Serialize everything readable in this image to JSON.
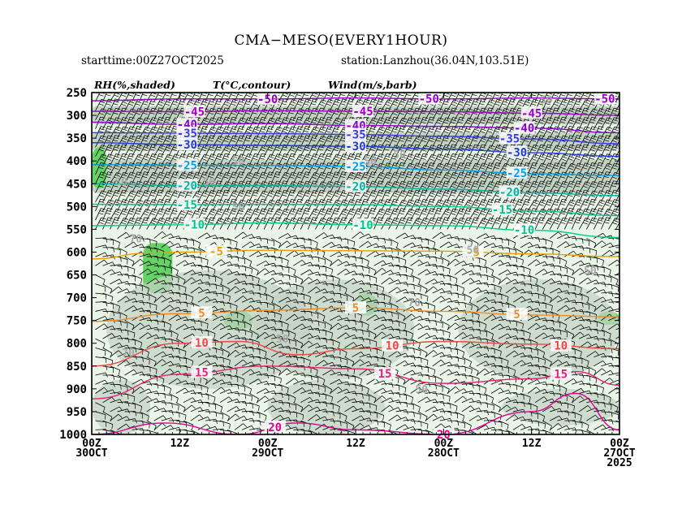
{
  "header": {
    "title": "CMA−MESO(EVERY1HOUR)",
    "starttime": "starttime:00Z27OCT2025",
    "station": "station:Lanzhou(36.04N,103.51E)"
  },
  "legend": {
    "rh": "RH(%,shaded)",
    "temp": "T(°C,contour)",
    "wind": "Wind(m/s,barb)"
  },
  "colors": {
    "shade_light": "#e9f5e6",
    "shade_mid": "#c3d3c3",
    "shade_green": "#66d266",
    "t_m50": "#9600c8",
    "t_m45": "#a000c8",
    "t_m40": "#8a00d0",
    "t_m35": "#3a3ae6",
    "t_m30": "#1e3cdc",
    "t_m25": "#00a0e6",
    "t_m20": "#00b4a0",
    "t_m15": "#00c08c",
    "t_m10": "#00c88c",
    "t_m5": "#e6a000",
    "t_p5": "#f08c28",
    "t_p10": "#f04646",
    "t_p15": "#e61e78",
    "t_p20": "#dc0096"
  },
  "chart_data": {
    "type": "time-height cross section",
    "title": "CMA−MESO(EVERY1HOUR)",
    "y_ticks": [
      250,
      300,
      350,
      400,
      450,
      500,
      550,
      600,
      650,
      700,
      750,
      800,
      850,
      900,
      950,
      1000
    ],
    "y_tick_labels": [
      "250",
      "300",
      "350",
      "400",
      "450",
      "500",
      "550",
      "600",
      "650",
      "700",
      "750",
      "800",
      "850",
      "900",
      "950",
      "1000"
    ],
    "ylim": [
      1000,
      250
    ],
    "x_ticks": [
      0,
      12,
      24,
      36,
      48,
      60,
      72
    ],
    "x_tick_labels": [
      [
        "00Z",
        "30OCT"
      ],
      [
        "12Z"
      ],
      [
        "00Z",
        "29OCT"
      ],
      [
        "12Z"
      ],
      [
        "00Z",
        "28OCT"
      ],
      [
        "12Z"
      ],
      [
        "00Z",
        "27OCT",
        "2025"
      ]
    ],
    "xlim": [
      0,
      72
    ],
    "x_direction": "time decreasing to the right (00Z30OCT to 00Z27OCT2025)",
    "temperature_contours": [
      {
        "value": -50,
        "label": "-50",
        "color_key": "t_m50",
        "points": [
          [
            0,
            268
          ],
          [
            12,
            264
          ],
          [
            24,
            264
          ],
          [
            36,
            262
          ],
          [
            48,
            264
          ],
          [
            60,
            262
          ],
          [
            72,
            264
          ]
        ],
        "labels_at": [
          24,
          46,
          70
        ]
      },
      {
        "value": -45,
        "label": "-45",
        "color_key": "t_m45",
        "points": [
          [
            0,
            291
          ],
          [
            12,
            292
          ],
          [
            24,
            290
          ],
          [
            36,
            291
          ],
          [
            48,
            292
          ],
          [
            60,
            295
          ],
          [
            72,
            300
          ]
        ],
        "labels_at": [
          14,
          37,
          60
        ]
      },
      {
        "value": -40,
        "label": "-40",
        "color_key": "t_m40",
        "points": [
          [
            0,
            315
          ],
          [
            12,
            320
          ],
          [
            24,
            318
          ],
          [
            36,
            322
          ],
          [
            48,
            324
          ],
          [
            60,
            328
          ],
          [
            72,
            338
          ]
        ],
        "labels_at": [
          13,
          36,
          59
        ]
      },
      {
        "value": -35,
        "label": "-35",
        "color_key": "t_m35",
        "points": [
          [
            0,
            338
          ],
          [
            12,
            339
          ],
          [
            24,
            340
          ],
          [
            36,
            342
          ],
          [
            48,
            346
          ],
          [
            60,
            352
          ],
          [
            72,
            362
          ]
        ],
        "labels_at": [
          13,
          36,
          57
        ]
      },
      {
        "value": -30,
        "label": "-30",
        "color_key": "t_m30",
        "points": [
          [
            0,
            360
          ],
          [
            12,
            364
          ],
          [
            24,
            366
          ],
          [
            36,
            368
          ],
          [
            48,
            374
          ],
          [
            60,
            382
          ],
          [
            72,
            390
          ]
        ],
        "labels_at": [
          13,
          36,
          58
        ]
      },
      {
        "value": -25,
        "label": "-25",
        "color_key": "t_m25",
        "points": [
          [
            0,
            408
          ],
          [
            12,
            409
          ],
          [
            24,
            410
          ],
          [
            36,
            412
          ],
          [
            48,
            420
          ],
          [
            60,
            428
          ],
          [
            72,
            432
          ]
        ],
        "labels_at": [
          13,
          36,
          58
        ]
      },
      {
        "value": -20,
        "label": "-20",
        "color_key": "t_m20",
        "points": [
          [
            0,
            450
          ],
          [
            12,
            454
          ],
          [
            24,
            454
          ],
          [
            36,
            456
          ],
          [
            48,
            462
          ],
          [
            60,
            470
          ],
          [
            72,
            476
          ]
        ],
        "labels_at": [
          13,
          36,
          57
        ]
      },
      {
        "value": -15,
        "label": "-15",
        "color_key": "t_m15",
        "points": [
          [
            0,
            495
          ],
          [
            12,
            496
          ],
          [
            24,
            495
          ],
          [
            36,
            496
          ],
          [
            48,
            500
          ],
          [
            60,
            510
          ],
          [
            72,
            520
          ]
        ],
        "labels_at": [
          13,
          56
        ]
      },
      {
        "value": -10,
        "label": "-10",
        "color_key": "t_m10",
        "points": [
          [
            0,
            542
          ],
          [
            12,
            540
          ],
          [
            24,
            536
          ],
          [
            36,
            540
          ],
          [
            48,
            542
          ],
          [
            60,
            552
          ],
          [
            72,
            568
          ]
        ],
        "labels_at": [
          14,
          37,
          59
        ]
      },
      {
        "value": -5,
        "label": "-5",
        "color_key": "t_m5",
        "points": [
          [
            0,
            615
          ],
          [
            8,
            602
          ],
          [
            12,
            600
          ],
          [
            24,
            596
          ],
          [
            36,
            597
          ],
          [
            48,
            598
          ],
          [
            60,
            604
          ],
          [
            72,
            610
          ]
        ],
        "labels_at": [
          17,
          52
        ]
      },
      {
        "value": 5,
        "label": "5",
        "color_key": "t_p5",
        "points": [
          [
            0,
            752
          ],
          [
            12,
            735
          ],
          [
            24,
            728
          ],
          [
            36,
            722
          ],
          [
            48,
            730
          ],
          [
            60,
            738
          ],
          [
            72,
            742
          ]
        ],
        "labels_at": [
          15,
          36,
          58
        ]
      },
      {
        "value": 10,
        "label": "10",
        "color_key": "t_p10",
        "points": [
          [
            0,
            850
          ],
          [
            12,
            800
          ],
          [
            20,
            796
          ],
          [
            28,
            825
          ],
          [
            36,
            812
          ],
          [
            48,
            796
          ],
          [
            60,
            802
          ],
          [
            72,
            812
          ]
        ],
        "labels_at": [
          15,
          41,
          64
        ]
      },
      {
        "value": 15,
        "label": "15",
        "color_key": "t_p15",
        "points": [
          [
            0,
            922
          ],
          [
            12,
            868
          ],
          [
            24,
            850
          ],
          [
            36,
            856
          ],
          [
            48,
            888
          ],
          [
            60,
            878
          ],
          [
            66,
            862
          ],
          [
            72,
            892
          ]
        ],
        "labels_at": [
          15,
          40,
          64
        ]
      },
      {
        "value": 20,
        "label": "20",
        "color_key": "t_p20",
        "points": [
          [
            0,
            1000
          ],
          [
            10,
            975
          ],
          [
            20,
            1000
          ],
          [
            28,
            975
          ],
          [
            36,
            990
          ],
          [
            48,
            1000
          ],
          [
            60,
            950
          ],
          [
            66,
            910
          ],
          [
            72,
            990
          ]
        ],
        "labels_at": [
          25,
          48
        ]
      }
    ],
    "rh_shading": [
      {
        "level": "70-90%",
        "color_key": "shade_mid",
        "bands": [
          [
            0,
            72,
            280,
            320
          ],
          [
            0,
            72,
            338,
            378
          ],
          [
            0,
            72,
            398,
            470
          ]
        ]
      },
      {
        "level": "90%+",
        "color_key": "shade_green",
        "regions": [
          [
            0,
            2,
            370,
            460
          ],
          [
            7,
            11,
            580,
            690
          ],
          [
            18,
            22,
            730,
            770
          ],
          [
            36,
            39,
            690,
            740
          ],
          [
            69,
            72,
            730,
            760
          ]
        ]
      }
    ],
    "rh_labels": [
      "50",
      "50",
      "50",
      "70",
      "50",
      "70",
      "50",
      "70",
      "50",
      "50",
      "50",
      "50",
      "50",
      "50"
    ],
    "wind_barbs": "wind barbs on a regular time-pressure grid"
  }
}
